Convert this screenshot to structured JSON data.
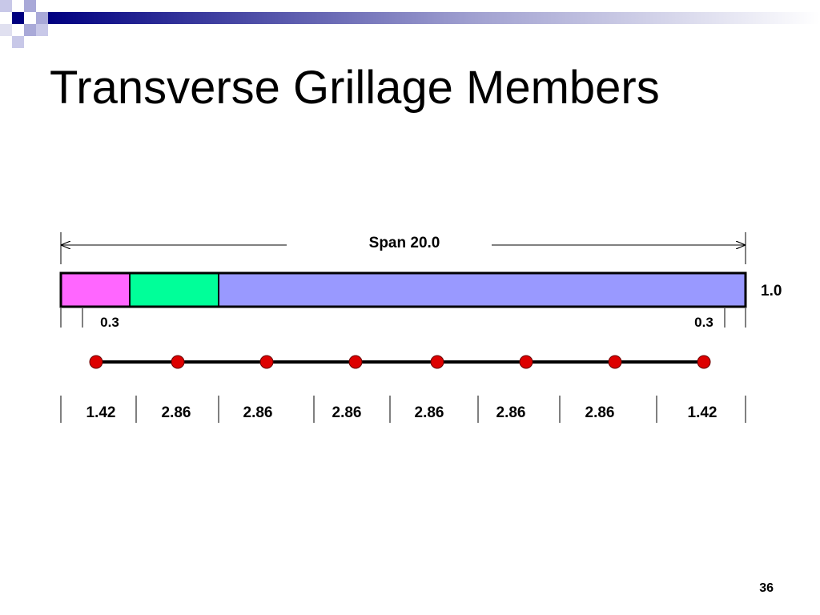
{
  "slide": {
    "title": "Transverse Grillage Members",
    "page_number": "36"
  },
  "diagram": {
    "span_label": "Span 20.0",
    "depth_label": "1.0",
    "edge_label_left": "0.3",
    "edge_label_right": "0.3",
    "segments": [
      {
        "label": "",
        "color": "#ff66ff"
      },
      {
        "label": "",
        "color": "#00ff99"
      },
      {
        "label": "",
        "color": "#9999ff"
      }
    ],
    "node_count": 8,
    "node_color": "#dd0000",
    "spacings": [
      "1.42",
      "2.86",
      "2.86",
      "2.86",
      "2.86",
      "2.86",
      "2.86",
      "1.42"
    ]
  },
  "theme": {
    "header_dark": "#000080",
    "header_light": "#a9a9d8"
  }
}
